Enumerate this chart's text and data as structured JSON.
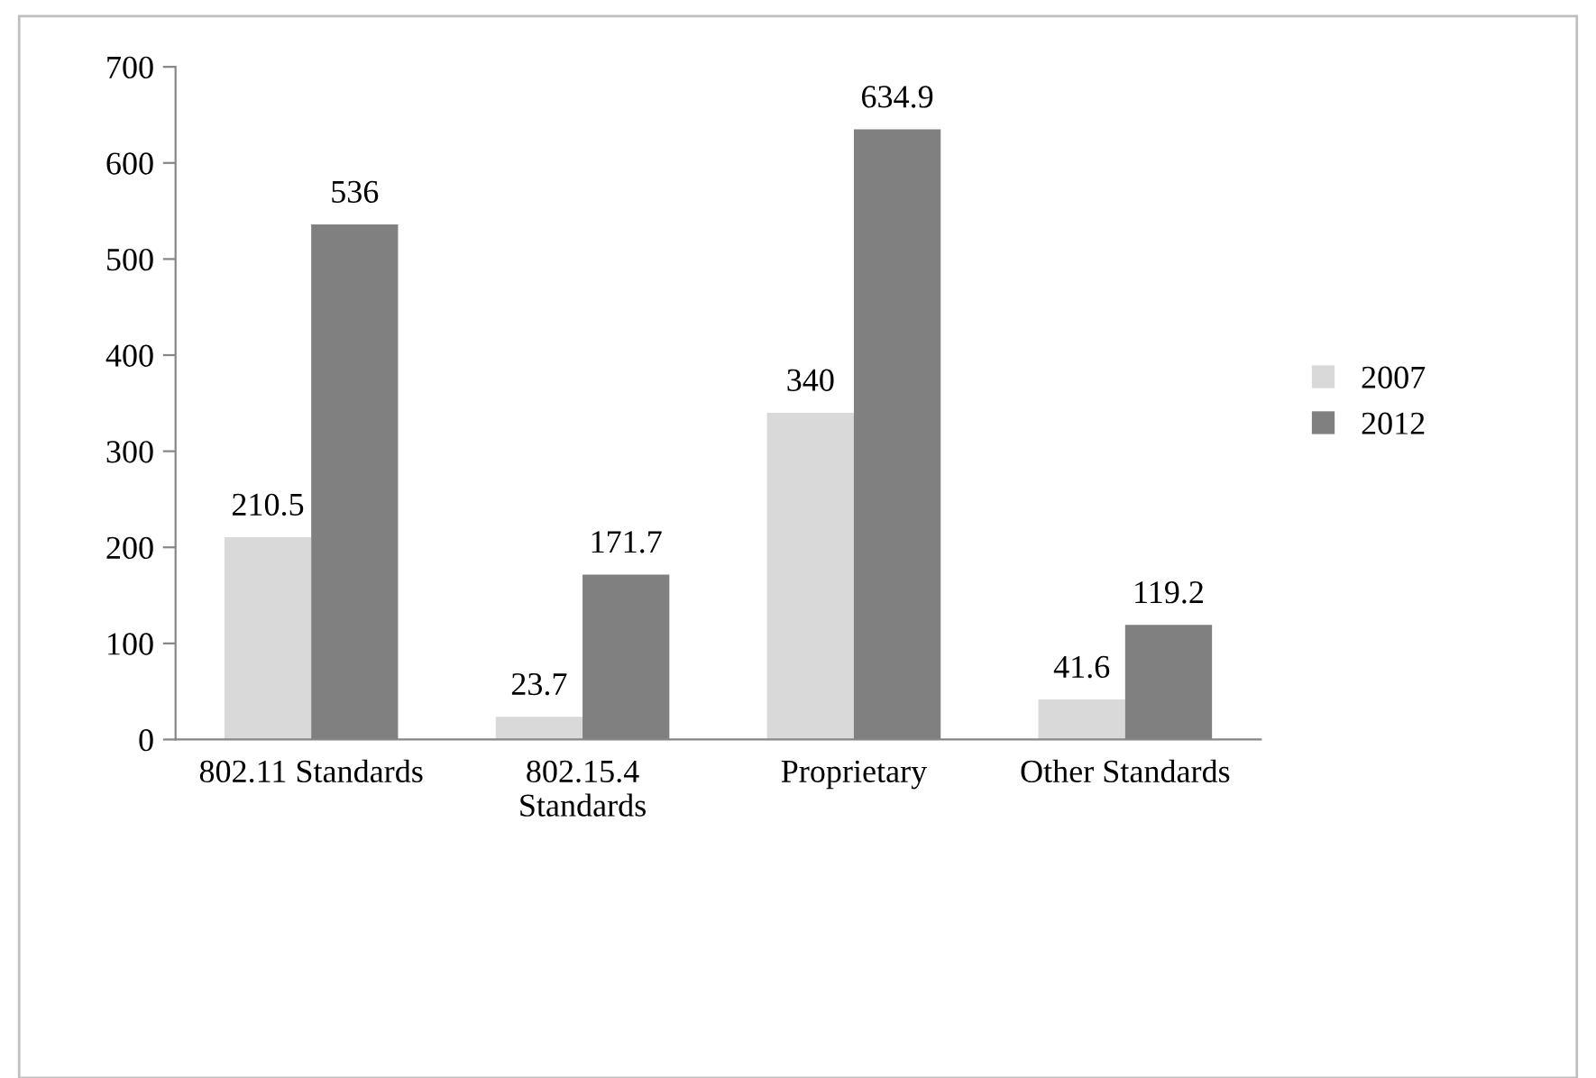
{
  "chart_data": {
    "type": "bar",
    "categories": [
      "802.11 Standards",
      "802.15.4\nStandards",
      "Proprietary",
      "Other Standards"
    ],
    "series": [
      {
        "name": "2007",
        "color": "#d9d9d9",
        "values": [
          210.5,
          23.7,
          340,
          41.6
        ]
      },
      {
        "name": "2012",
        "color": "#808080",
        "values": [
          536,
          171.7,
          634.9,
          119.2
        ]
      }
    ],
    "ylim": [
      0,
      700
    ],
    "yticks": [
      0,
      100,
      200,
      300,
      400,
      500,
      600,
      700
    ],
    "data_labels": true,
    "legend": "right",
    "grid": false
  }
}
